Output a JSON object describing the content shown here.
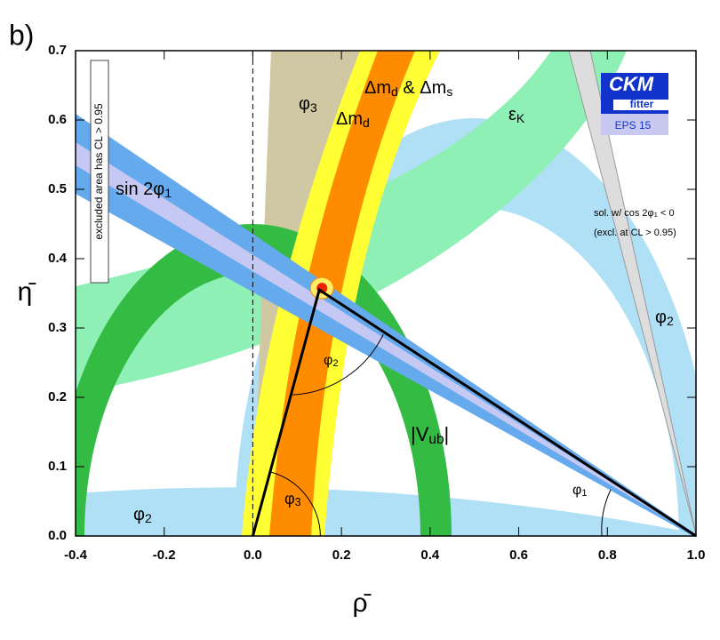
{
  "panel_label": "b)",
  "chart_data": {
    "type": "ckm",
    "x_label": "ρ̄",
    "y_label": "η̄",
    "xlim": [
      -0.4,
      1.0
    ],
    "ylim": [
      0,
      0.7
    ],
    "xticks": [
      -0.4,
      -0.2,
      {
        "value": 0,
        "label": "0.0"
      },
      0.2,
      0.4,
      0.6,
      0.8,
      {
        "value": 1,
        "label": "1.0"
      }
    ],
    "yticks": [
      {
        "value": 0,
        "label": "0.0"
      },
      0.1,
      0.2,
      0.3,
      0.4,
      0.5,
      0.6,
      0.7
    ],
    "triangle": {
      "x": [
        0,
        0.15,
        1
      ],
      "y": [
        0,
        0.355,
        0
      ]
    },
    "annotations": [
      {
        "parts": [
          "φ",
          "3"
        ]
      },
      {
        "parts": [
          "Δm",
          "d"
        ]
      },
      {
        "parts": [
          "Δm",
          "d",
          " & Δm",
          "s"
        ]
      },
      {
        "parts": [
          "ε",
          "K"
        ]
      },
      {
        "parts": [
          "sin 2φ",
          "1"
        ]
      },
      {
        "parts": [
          "φ",
          "2"
        ]
      },
      {
        "parts": [
          "|V",
          "ub",
          "|"
        ]
      },
      {
        "parts": [
          "φ",
          "1"
        ]
      },
      {
        "parts": [
          "φ",
          "2"
        ]
      },
      {
        "parts": [
          "φ",
          "3"
        ]
      },
      {
        "parts": [
          "φ",
          "2"
        ]
      },
      {
        "parts": [
          "sol. w/ cos 2φ",
          "1",
          " < 0"
        ]
      },
      {
        "parts": [
          "(excl. at CL > 0.95)"
        ]
      }
    ],
    "excluded_note": "excluded area has CL > 0.95",
    "logo": {
      "title": "CKM",
      "subtitle": "fitter",
      "edition": "EPS 15"
    }
  }
}
